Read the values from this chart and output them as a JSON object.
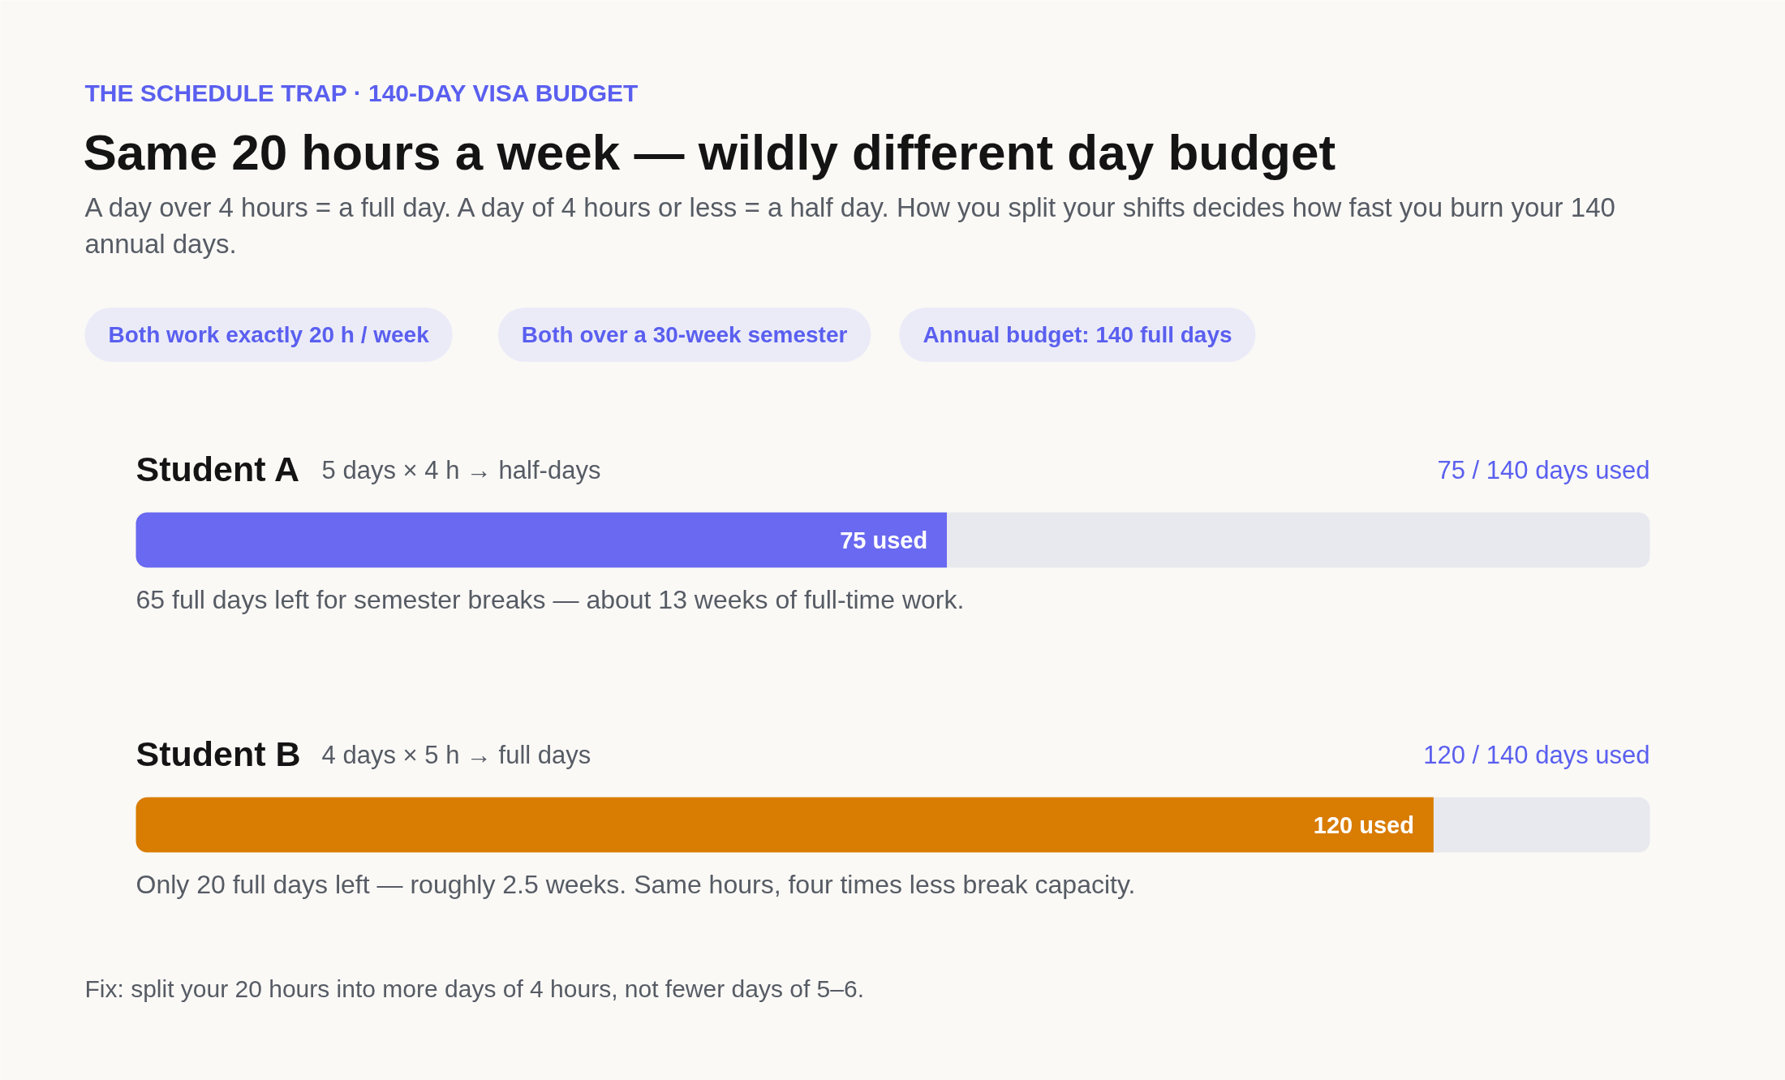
{
  "chart_data": {
    "type": "bar",
    "orientation": "horizontal",
    "stacked": true,
    "title": "Same 20 hours a week — wildly different day budget",
    "subtitle": "A day over 4 hours = a full day. A day of 4 hours or less = a half day. How you split your shifts decides how fast you burn your 140 annual days.",
    "categories": [
      "Student A",
      "Student B"
    ],
    "series": [
      {
        "colors": [
          "#6a69f1",
          "#d97c02"
        ],
        "values": [
          75,
          120
        ],
        "value_labels": [
          "75 used",
          "120 used"
        ]
      },
      {
        "color": "#e8e9ee",
        "values": [
          65,
          20
        ]
      }
    ],
    "xlim": [
      0,
      140
    ],
    "tick_labels": false,
    "annotations": [
      "THE SCHEDULE TRAP · 140-DAY VISA BUDGET",
      "Both work exactly 20 h / week",
      "Both over a 30-week semester",
      "Annual budget: 140 full days",
      "5 days × 4 h → half-days",
      "75 / 140 days used",
      "65 full days left for semester breaks — about 13 weeks of full-time work.",
      "4 days × 5 h → full days",
      "120 / 140 days used",
      "Only 20 full days left — roughly 2.5 weeks. Same hours, four times less break capacity.",
      "Fix: split your 20 hours into more days of 4 hours, not fewer days of 5–6."
    ]
  }
}
